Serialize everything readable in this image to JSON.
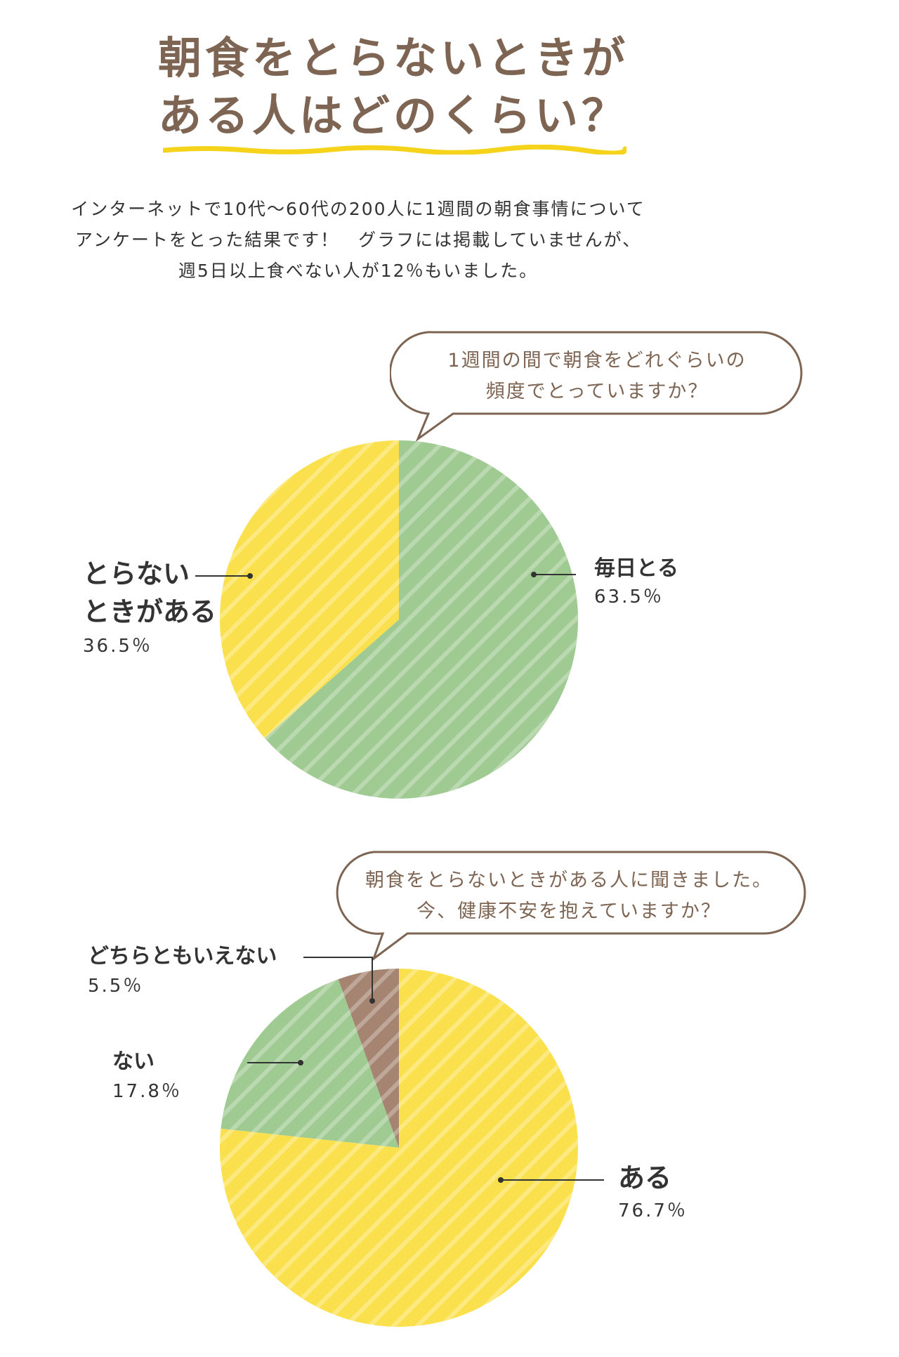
{
  "title": {
    "line1": "朝食をとらないときが",
    "line2": "ある人はどのくらい？"
  },
  "intro": {
    "line1": "インターネットで10代～60代の200人に1週間の朝食事情について",
    "line2": "アンケートをとった結果です！　グラフには掲載していませんが、",
    "line3": "週5日以上食べない人が12％もいました。"
  },
  "colors": {
    "title_brown": "#7e6553",
    "underline_yellow": "#f5d31b",
    "slice_green": "#9fcb92",
    "slice_yellow": "#fbe04e",
    "slice_brown": "#a58571",
    "text_dark": "#333333"
  },
  "chart_data": [
    {
      "type": "pie",
      "question": {
        "line1": "1週間の間で朝食をどれぐらいの",
        "line2": "頻度でとっていますか？"
      },
      "slices": [
        {
          "label": "毎日とる",
          "value": 63.5,
          "value_label": "63.5％",
          "color": "#9fcb92"
        },
        {
          "label_line1": "とらない",
          "label_line2": "ときがある",
          "value": 36.5,
          "value_label": "36.5％",
          "color": "#fbe04e"
        }
      ]
    },
    {
      "type": "pie",
      "question": {
        "line1": "朝食をとらないときがある人に聞きました。",
        "line2": "今、健康不安を抱えていますか？"
      },
      "slices": [
        {
          "label": "ある",
          "value": 76.7,
          "value_label": "76.7％",
          "color": "#fbe04e"
        },
        {
          "label": "ない",
          "value": 17.8,
          "value_label": "17.8％",
          "color": "#9fcb92"
        },
        {
          "label": "どちらともいえない",
          "value": 5.5,
          "value_label": "5.5％",
          "color": "#a58571"
        }
      ]
    }
  ]
}
